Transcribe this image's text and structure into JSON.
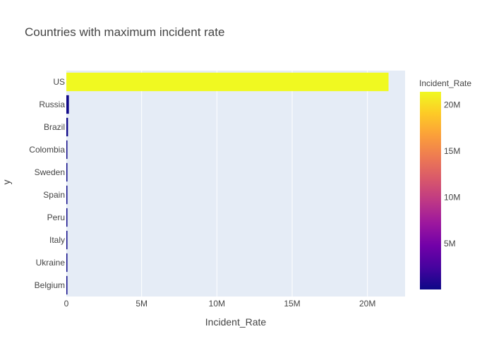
{
  "chart_data": {
    "type": "bar",
    "orientation": "horizontal",
    "title": "Countries with maximum incident rate",
    "xlabel": "Incident_Rate",
    "ylabel": "y",
    "categories": [
      "US",
      "Russia",
      "Brazil",
      "Colombia",
      "Sweden",
      "Spain",
      "Peru",
      "Italy",
      "Ukraine",
      "Belgium"
    ],
    "values": [
      21400000,
      170000,
      110000,
      70000,
      60000,
      50000,
      50000,
      40000,
      40000,
      40000
    ],
    "xlim": [
      0,
      22500000
    ],
    "xticks": [
      0,
      5000000,
      10000000,
      15000000,
      20000000
    ],
    "xtick_labels": [
      "0",
      "5M",
      "10M",
      "15M",
      "20M"
    ],
    "grid": true,
    "colorbar": {
      "title": "Incident_Rate",
      "range": [
        40000,
        21400000
      ],
      "ticks": [
        5000000,
        10000000,
        15000000,
        20000000
      ],
      "tick_labels": [
        "5M",
        "10M",
        "15M",
        "20M"
      ],
      "colors": [
        "#0d0887",
        "#46039f",
        "#7201a8",
        "#9c179e",
        "#bd3786",
        "#d8576b",
        "#ed7953",
        "#fb9f3a",
        "#fdca26",
        "#f0f921"
      ]
    },
    "plot_background": "#e5ecf6"
  }
}
